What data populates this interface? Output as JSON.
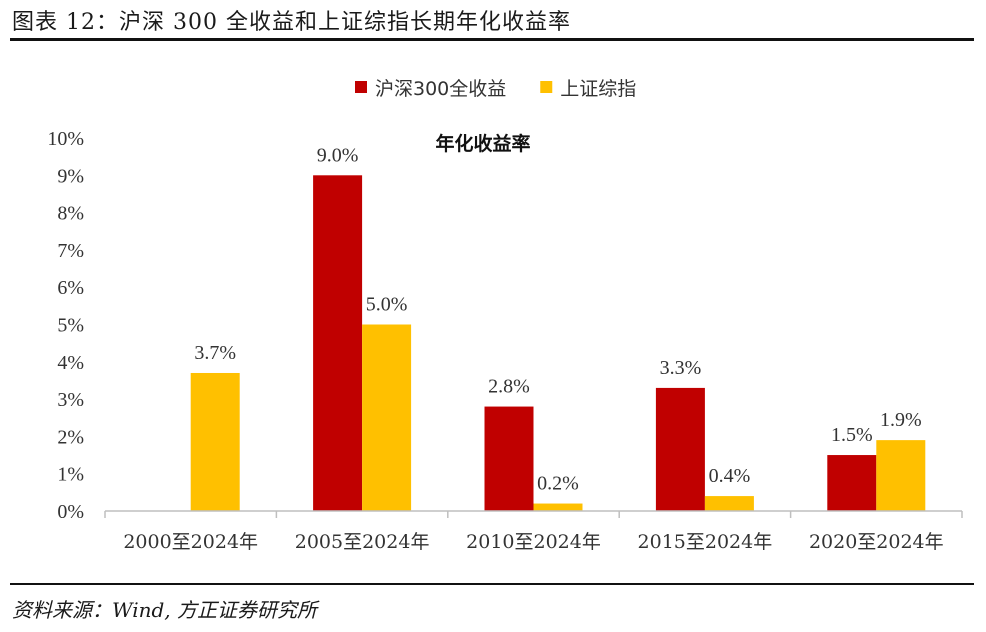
{
  "header": {
    "title": "图表 12：沪深 300 全收益和上证综指长期年化收益率"
  },
  "footer": {
    "source": "资料来源：Wind, 方正证券研究所"
  },
  "chart_data": {
    "type": "bar",
    "title": "年化收益率",
    "categories": [
      "2000至2024年",
      "2005至2024年",
      "2010至2024年",
      "2015至2024年",
      "2020至2024年"
    ],
    "series": [
      {
        "name": "沪深300全收益",
        "color": "#c00000",
        "values": [
          null,
          9.0,
          2.8,
          3.3,
          1.5
        ]
      },
      {
        "name": "上证综指",
        "color": "#ffc000",
        "values": [
          3.7,
          5.0,
          0.2,
          0.4,
          1.9
        ]
      }
    ],
    "ylim": [
      0,
      10
    ],
    "yticks": [
      "0%",
      "1%",
      "2%",
      "3%",
      "4%",
      "5%",
      "6%",
      "7%",
      "8%",
      "9%",
      "10%"
    ],
    "value_suffix": "%",
    "legend": "top-right",
    "grid": false
  }
}
